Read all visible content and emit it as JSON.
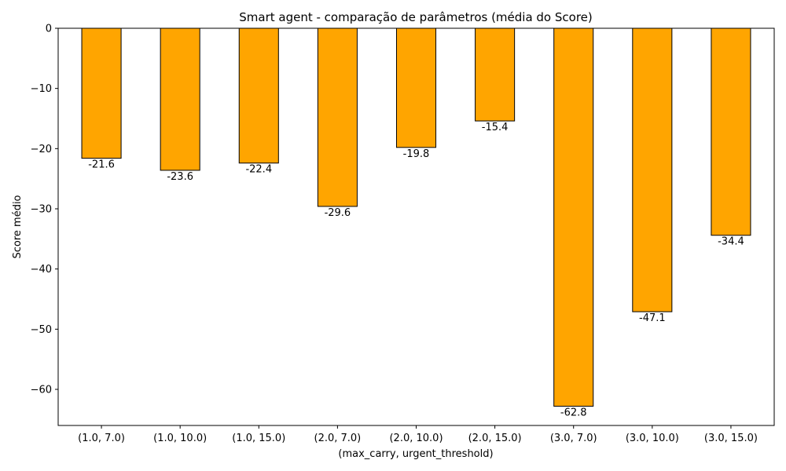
{
  "chart_data": {
    "type": "bar",
    "title": "Smart agent - comparação de parâmetros (média do Score)",
    "xlabel": "(max_carry, urgent_threshold)",
    "ylabel": "Score médio",
    "categories": [
      "(1.0, 7.0)",
      "(1.0, 10.0)",
      "(1.0, 15.0)",
      "(2.0, 7.0)",
      "(2.0, 10.0)",
      "(2.0, 15.0)",
      "(3.0, 7.0)",
      "(3.0, 10.0)",
      "(3.0, 15.0)"
    ],
    "values": [
      -21.6,
      -23.6,
      -22.4,
      -29.6,
      -19.8,
      -15.4,
      -62.8,
      -47.1,
      -34.4
    ],
    "data_labels": [
      "-21.6",
      "-23.6",
      "-22.4",
      "-29.6",
      "-19.8",
      "-15.4",
      "-62.8",
      "-47.1",
      "-34.4"
    ],
    "ylim": [
      -66,
      0
    ],
    "yticks": [
      0,
      -10,
      -20,
      -30,
      -40,
      -50,
      -60
    ],
    "ytick_labels": [
      "0",
      "−10",
      "−20",
      "−30",
      "−40",
      "−50",
      "−60"
    ],
    "grid": false,
    "bar_color": "#FFA500",
    "edge_color": "#000000"
  }
}
